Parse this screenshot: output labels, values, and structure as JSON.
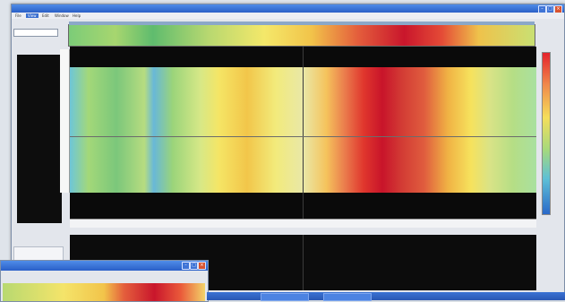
{
  "window": {
    "title": "",
    "menu": [
      "File",
      "View",
      "Edit",
      "Window",
      "Help"
    ],
    "select_value": ""
  },
  "left_panel": {
    "scale_text": "",
    "stats": [
      "",
      "",
      ""
    ]
  },
  "colors": {
    "titlebar": "#2a5fc7",
    "close": "#d9532f",
    "hot": "#c9162c",
    "cool": "#6ec6d8"
  },
  "icons": [
    "minimize-icon",
    "maximize-icon",
    "close-icon"
  ]
}
